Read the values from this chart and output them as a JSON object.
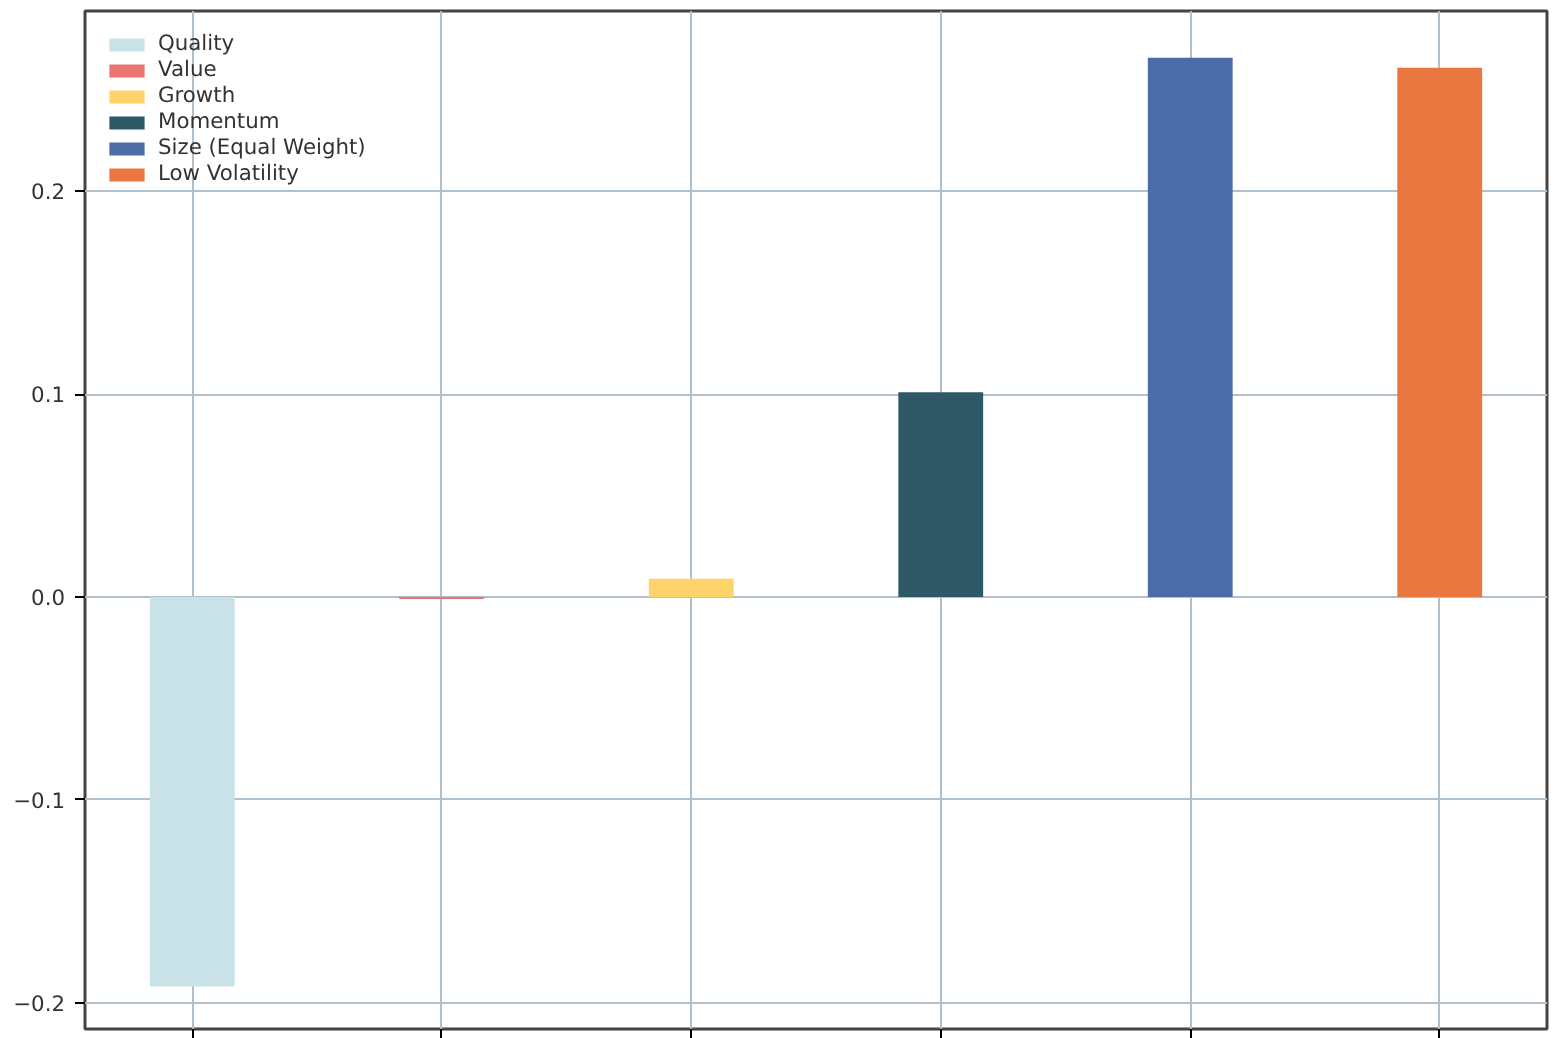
{
  "chart_data": {
    "type": "bar",
    "categories": [
      null,
      null,
      null,
      null,
      null,
      null
    ],
    "series": [
      {
        "name": "Quality",
        "color": "#c9e2e8",
        "values": [
          -0.192,
          null,
          null,
          null,
          null,
          null
        ]
      },
      {
        "name": "Value",
        "color": "#e97470",
        "values": [
          null,
          -0.001,
          null,
          null,
          null,
          null
        ]
      },
      {
        "name": "Growth",
        "color": "#fed46a",
        "values": [
          null,
          null,
          0.009,
          null,
          null,
          null
        ]
      },
      {
        "name": "Momentum",
        "color": "#2f5967",
        "values": [
          null,
          null,
          null,
          0.101,
          null,
          null
        ]
      },
      {
        "name": "Size (Equal Weight)",
        "color": "#4a6ca7",
        "values": [
          null,
          null,
          null,
          null,
          0.266,
          null
        ]
      },
      {
        "name": "Low Volatility",
        "color": "#e9773f",
        "values": [
          null,
          null,
          null,
          null,
          null,
          0.261
        ]
      }
    ],
    "ylim": [
      -0.213,
      0.289
    ],
    "yticks": [
      {
        "value": -0.2,
        "label": "−0.2"
      },
      {
        "value": -0.1,
        "label": "−0.1"
      },
      {
        "value": 0,
        "label": "0.0"
      },
      {
        "value": 0.1,
        "label": "0.1"
      },
      {
        "value": 0.2,
        "label": "0.2"
      }
    ],
    "grid": true,
    "legend": "top left"
  }
}
